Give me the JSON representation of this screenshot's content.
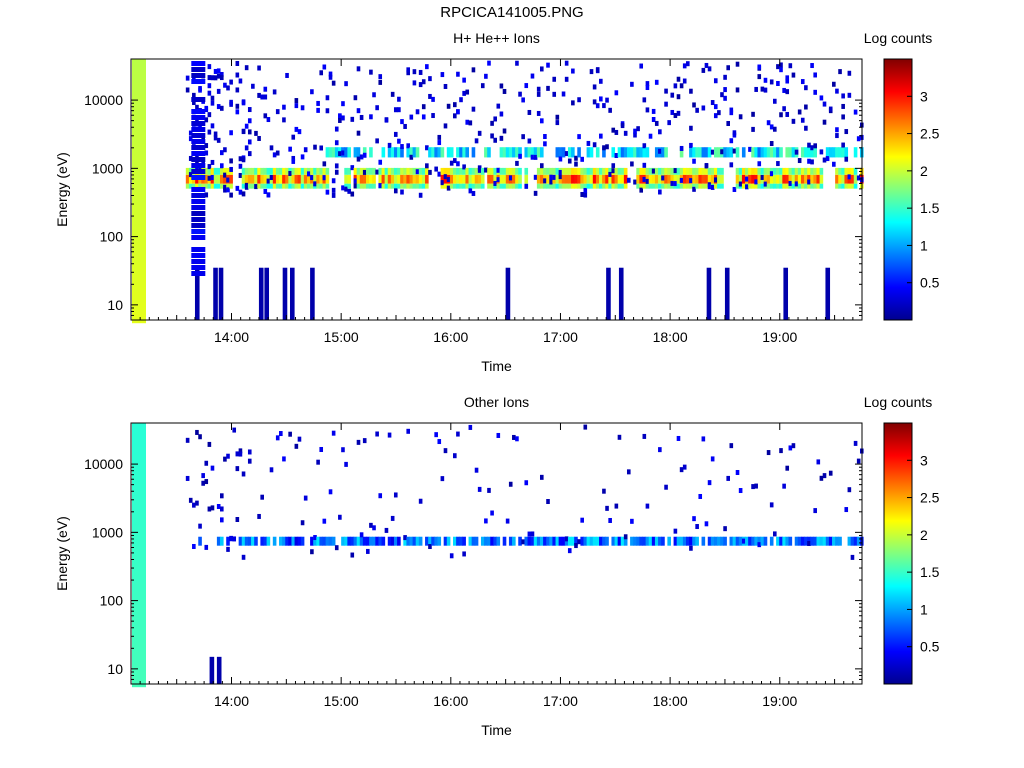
{
  "page_title": "RPCICA141005.PNG",
  "chart_data": [
    {
      "type": "heatmap",
      "title": "H+ He++ Ions",
      "xlabel": "Time",
      "ylabel": "Energy (eV)",
      "x_ticks": [
        "14:00",
        "15:00",
        "16:00",
        "17:00",
        "18:00",
        "19:00"
      ],
      "y_ticks": [
        "10",
        "100",
        "1000",
        "10000"
      ],
      "y_scale": "log",
      "xlim": [
        "13:05",
        "19:45"
      ],
      "ylim": [
        6,
        40000
      ],
      "colorbar_label": "Log counts",
      "colorbar_ticks": [
        "0.5",
        "1",
        "1.5",
        "2",
        "2.5",
        "3"
      ],
      "colorbar_range": [
        0,
        3.5
      ],
      "main_band_energy": 700,
      "upper_band_energy": 1700
    },
    {
      "type": "heatmap",
      "title": "Other Ions",
      "xlabel": "Time",
      "ylabel": "Energy (eV)",
      "x_ticks": [
        "14:00",
        "15:00",
        "16:00",
        "17:00",
        "18:00",
        "19:00"
      ],
      "y_ticks": [
        "10",
        "100",
        "1000",
        "10000"
      ],
      "y_scale": "log",
      "xlim": [
        "13:05",
        "19:45"
      ],
      "ylim": [
        6,
        40000
      ],
      "colorbar_label": "Log counts",
      "colorbar_ticks": [
        "0.5",
        "1",
        "1.5",
        "2",
        "2.5",
        "3"
      ],
      "colorbar_range": [
        0,
        3.5
      ],
      "main_band_energy": 750
    }
  ]
}
